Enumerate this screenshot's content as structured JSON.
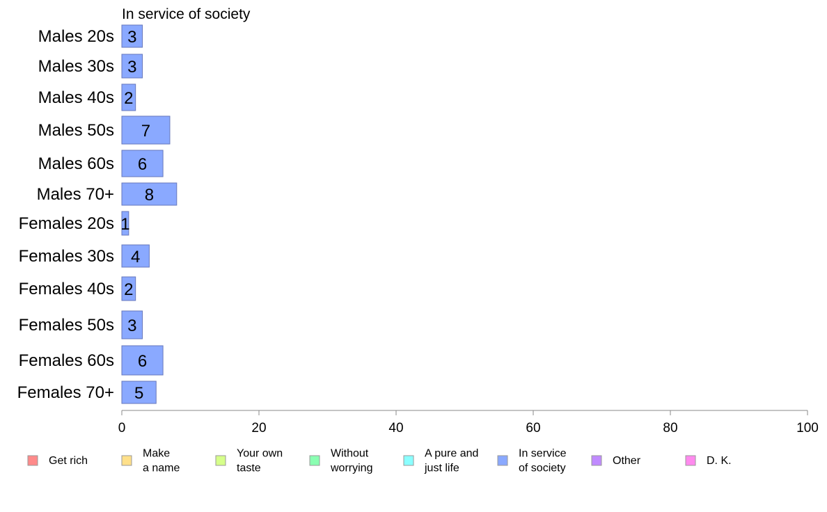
{
  "chart_data": {
    "type": "bar",
    "orientation": "horizontal",
    "title": "In service of society",
    "categories": [
      "Males 20s",
      "Males 30s",
      "Males 40s",
      "Males 50s",
      "Males 60s",
      "Males 70+",
      "Females 20s",
      "Females 30s",
      "Females 40s",
      "Females 50s",
      "Females 60s",
      "Females 70+"
    ],
    "values": [
      3,
      3,
      2,
      7,
      6,
      8,
      1,
      4,
      2,
      3,
      6,
      5
    ],
    "value_labels": [
      "3",
      "3",
      "2",
      "7",
      "6",
      "8",
      "1",
      "4",
      "2",
      "3",
      "6",
      "5"
    ],
    "bar_color": "#8aa9ff",
    "bar_edge_color": "#6677bb",
    "xlim": [
      0,
      100
    ],
    "xticks": [
      0,
      20,
      40,
      60,
      80,
      100
    ],
    "xtick_labels": [
      "0",
      "20",
      "40",
      "60",
      "80",
      "100"
    ],
    "grid": false,
    "legend": {
      "position": "bottom",
      "items": [
        {
          "label_lines": [
            "Get rich"
          ],
          "color": "#ff8a8a"
        },
        {
          "label_lines": [
            "Make",
            "a name"
          ],
          "color": "#ffe08a"
        },
        {
          "label_lines": [
            "Your own",
            "taste"
          ],
          "color": "#d6ff8a"
        },
        {
          "label_lines": [
            "Without",
            "worrying"
          ],
          "color": "#8affb2"
        },
        {
          "label_lines": [
            "A pure and",
            "just life"
          ],
          "color": "#8affff"
        },
        {
          "label_lines": [
            "In service",
            "of society"
          ],
          "color": "#8aa9ff"
        },
        {
          "label_lines": [
            "Other"
          ],
          "color": "#c08aff"
        },
        {
          "label_lines": [
            "D. K."
          ],
          "color": "#ff8aee"
        }
      ]
    }
  }
}
